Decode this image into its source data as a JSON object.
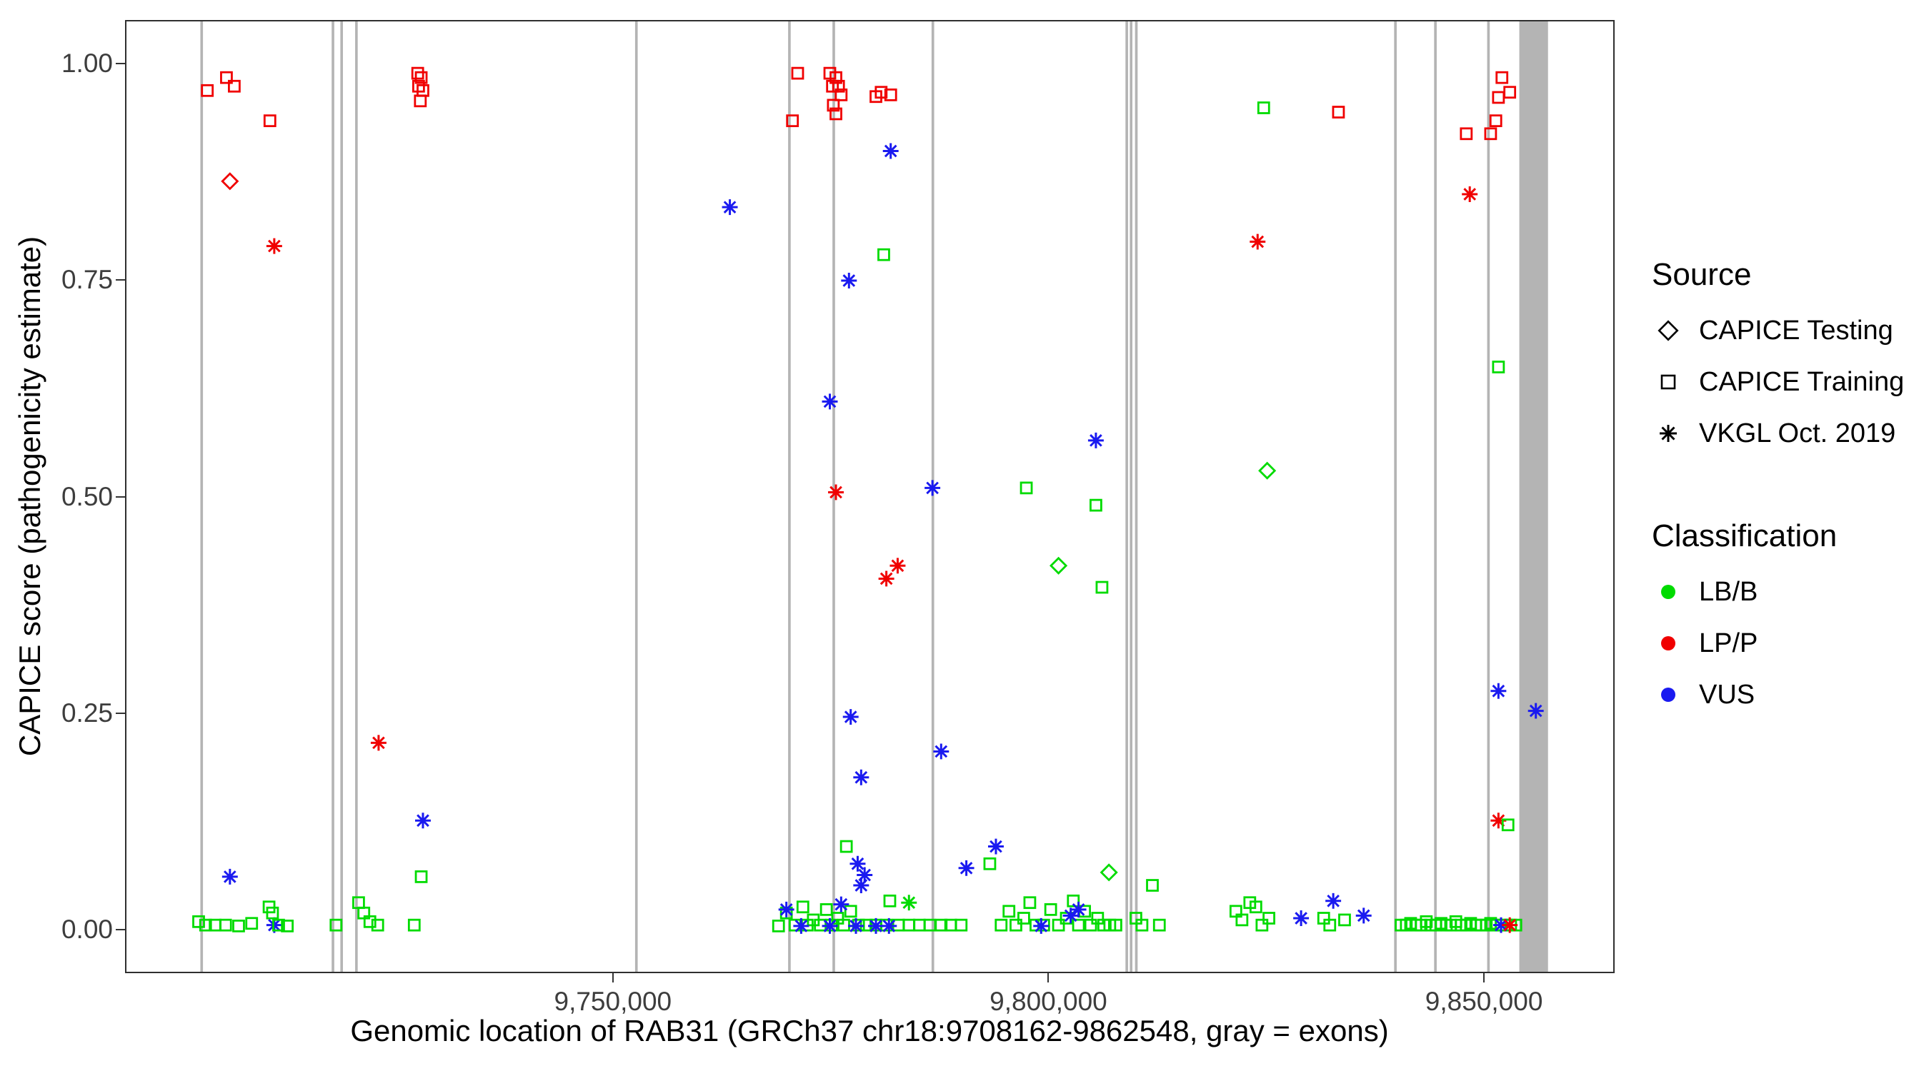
{
  "figure": {
    "y_axis_title": "CAPICE score (pathogenicity estimate)",
    "x_axis_title": "Genomic location of RAB31 (GRCh37 chr18:9708162-9862548, gray = exons)",
    "legend": {
      "source_title": "Source",
      "source_items": [
        {
          "label": "CAPICE Testing",
          "shape": "diamond"
        },
        {
          "label": "CAPICE Training",
          "shape": "square"
        },
        {
          "label": "VKGL Oct. 2019",
          "shape": "asterisk"
        }
      ],
      "classification_title": "Classification",
      "classification_items": [
        {
          "label": "LB/B",
          "color": "#00DB00"
        },
        {
          "label": "LP/P",
          "color": "#F00000"
        },
        {
          "label": "VUS",
          "color": "#1A1AF0"
        }
      ]
    }
  },
  "chart_data": {
    "type": "scatter",
    "title": "",
    "xlabel": "Genomic location of RAB31 (GRCh37 chr18:9708162-9862548, gray = exons)",
    "ylabel": "CAPICE score (pathogenicity estimate)",
    "xlim": [
      9694000,
      9865000
    ],
    "ylim": [
      -0.05,
      1.05
    ],
    "grid": false,
    "legend_position": "right",
    "x_ticks": [
      {
        "v": 9750000,
        "label": "9,750,000"
      },
      {
        "v": 9800000,
        "label": "9,800,000"
      },
      {
        "v": 9850000,
        "label": "9,850,000"
      }
    ],
    "y_ticks": [
      {
        "v": 0.0,
        "label": "0.00"
      },
      {
        "v": 0.25,
        "label": "0.25"
      },
      {
        "v": 0.5,
        "label": "0.50"
      },
      {
        "v": 0.75,
        "label": "0.75"
      },
      {
        "v": 1.0,
        "label": "1.00"
      }
    ],
    "colors": {
      "g": "#00DB00",
      "r": "#F00000",
      "b": "#1A1AF0",
      "exon": "#B4B4B4"
    },
    "point_format": [
      "genomic_position",
      "capice_score",
      "source_shape",
      "classification"
    ],
    "shape_codes": {
      "s": "CAPICE Training (open square)",
      "d": "CAPICE Testing (open diamond)",
      "a": "VKGL Oct. 2019 (asterisk)"
    },
    "class_codes": {
      "g": "LB/B",
      "r": "LP/P",
      "b": "VUS"
    },
    "exons": [
      [
        9702500,
        9702800
      ],
      [
        9717600,
        9717900
      ],
      [
        9718600,
        9718900
      ],
      [
        9720300,
        9720600
      ],
      [
        9752500,
        9752800
      ],
      [
        9770100,
        9770400
      ],
      [
        9775200,
        9775500
      ],
      [
        9786600,
        9786900
      ],
      [
        9808900,
        9809200
      ],
      [
        9809400,
        9809700
      ],
      [
        9810000,
        9810300
      ],
      [
        9839800,
        9840100
      ],
      [
        9844400,
        9844700
      ],
      [
        9850500,
        9850800
      ],
      [
        9854200,
        9857500
      ]
    ],
    "points": [
      [
        9703300,
        0.97,
        "s",
        "r"
      ],
      [
        9705500,
        0.985,
        "s",
        "r"
      ],
      [
        9706400,
        0.975,
        "s",
        "r"
      ],
      [
        9710500,
        0.935,
        "s",
        "r"
      ],
      [
        9705900,
        0.865,
        "d",
        "r"
      ],
      [
        9711000,
        0.79,
        "a",
        "r"
      ],
      [
        9705900,
        0.06,
        "a",
        "b"
      ],
      [
        9711000,
        0.004,
        "a",
        "b"
      ],
      [
        9702300,
        0.008,
        "s",
        "g"
      ],
      [
        9703100,
        0.004,
        "s",
        "g"
      ],
      [
        9704200,
        0.004,
        "s",
        "g"
      ],
      [
        9705400,
        0.004,
        "s",
        "g"
      ],
      [
        9706900,
        0.003,
        "s",
        "g"
      ],
      [
        9708400,
        0.006,
        "s",
        "g"
      ],
      [
        9710400,
        0.025,
        "s",
        "g"
      ],
      [
        9710800,
        0.018,
        "s",
        "g"
      ],
      [
        9711500,
        0.004,
        "s",
        "g"
      ],
      [
        9712500,
        0.003,
        "s",
        "g"
      ],
      [
        9718100,
        0.004,
        "s",
        "g"
      ],
      [
        9720700,
        0.03,
        "s",
        "g"
      ],
      [
        9721300,
        0.018,
        "s",
        "g"
      ],
      [
        9722000,
        0.008,
        "s",
        "g"
      ],
      [
        9722900,
        0.004,
        "s",
        "g"
      ],
      [
        9727100,
        0.004,
        "s",
        "g"
      ],
      [
        9727900,
        0.06,
        "s",
        "g"
      ],
      [
        9723000,
        0.215,
        "a",
        "r"
      ],
      [
        9728100,
        0.125,
        "a",
        "b"
      ],
      [
        9727500,
        0.99,
        "s",
        "r"
      ],
      [
        9727900,
        0.985,
        "s",
        "r"
      ],
      [
        9727600,
        0.975,
        "s",
        "r"
      ],
      [
        9728100,
        0.97,
        "s",
        "r"
      ],
      [
        9727800,
        0.958,
        "s",
        "r"
      ],
      [
        9763400,
        0.835,
        "a",
        "b"
      ],
      [
        9770600,
        0.935,
        "s",
        "r"
      ],
      [
        9771200,
        0.99,
        "s",
        "r"
      ],
      [
        9774900,
        0.99,
        "s",
        "r"
      ],
      [
        9775600,
        0.985,
        "s",
        "r"
      ],
      [
        9775200,
        0.975,
        "s",
        "r"
      ],
      [
        9775900,
        0.975,
        "s",
        "r"
      ],
      [
        9776200,
        0.965,
        "s",
        "r"
      ],
      [
        9775300,
        0.953,
        "s",
        "r"
      ],
      [
        9775600,
        0.943,
        "s",
        "r"
      ],
      [
        9780200,
        0.963,
        "s",
        "r"
      ],
      [
        9780800,
        0.968,
        "s",
        "r"
      ],
      [
        9781900,
        0.965,
        "s",
        "r"
      ],
      [
        9781900,
        0.9,
        "a",
        "b"
      ],
      [
        9781100,
        0.78,
        "s",
        "g"
      ],
      [
        9777100,
        0.75,
        "a",
        "b"
      ],
      [
        9774900,
        0.61,
        "a",
        "b"
      ],
      [
        9775600,
        0.505,
        "a",
        "r"
      ],
      [
        9786700,
        0.51,
        "a",
        "b"
      ],
      [
        9781400,
        0.405,
        "a",
        "r"
      ],
      [
        9782700,
        0.42,
        "a",
        "r"
      ],
      [
        9777300,
        0.245,
        "a",
        "b"
      ],
      [
        9787700,
        0.205,
        "a",
        "b"
      ],
      [
        9778500,
        0.175,
        "a",
        "b"
      ],
      [
        9776800,
        0.095,
        "s",
        "g"
      ],
      [
        9778100,
        0.075,
        "a",
        "b"
      ],
      [
        9778900,
        0.062,
        "a",
        "b"
      ],
      [
        9778500,
        0.05,
        "a",
        "b"
      ],
      [
        9781800,
        0.032,
        "s",
        "g"
      ],
      [
        9769000,
        0.003,
        "s",
        "g"
      ],
      [
        9769900,
        0.018,
        "s",
        "g"
      ],
      [
        9770900,
        0.004,
        "s",
        "g"
      ],
      [
        9771800,
        0.025,
        "s",
        "g"
      ],
      [
        9772300,
        0.004,
        "s",
        "g"
      ],
      [
        9773000,
        0.01,
        "s",
        "g"
      ],
      [
        9773800,
        0.004,
        "s",
        "g"
      ],
      [
        9774500,
        0.022,
        "s",
        "g"
      ],
      [
        9775100,
        0.004,
        "s",
        "g"
      ],
      [
        9775800,
        0.012,
        "s",
        "g"
      ],
      [
        9776500,
        0.004,
        "s",
        "g"
      ],
      [
        9777300,
        0.02,
        "s",
        "g"
      ],
      [
        9778200,
        0.004,
        "s",
        "g"
      ],
      [
        9779100,
        0.004,
        "s",
        "g"
      ],
      [
        9780200,
        0.004,
        "s",
        "g"
      ],
      [
        9781400,
        0.004,
        "s",
        "g"
      ],
      [
        9782800,
        0.004,
        "s",
        "g"
      ],
      [
        9784000,
        0.004,
        "s",
        "g"
      ],
      [
        9785200,
        0.004,
        "s",
        "g"
      ],
      [
        9786400,
        0.004,
        "s",
        "g"
      ],
      [
        9787700,
        0.004,
        "s",
        "g"
      ],
      [
        9788800,
        0.004,
        "s",
        "g"
      ],
      [
        9790000,
        0.004,
        "s",
        "g"
      ],
      [
        9769900,
        0.022,
        "a",
        "b"
      ],
      [
        9771600,
        0.003,
        "a",
        "b"
      ],
      [
        9774900,
        0.003,
        "a",
        "b"
      ],
      [
        9776200,
        0.028,
        "a",
        "b"
      ],
      [
        9777900,
        0.003,
        "a",
        "b"
      ],
      [
        9780200,
        0.003,
        "a",
        "b"
      ],
      [
        9781700,
        0.003,
        "a",
        "b"
      ],
      [
        9784000,
        0.03,
        "a",
        "g"
      ],
      [
        9790600,
        0.07,
        "a",
        "b"
      ],
      [
        9793300,
        0.075,
        "s",
        "g"
      ],
      [
        9794000,
        0.095,
        "a",
        "b"
      ],
      [
        9797500,
        0.51,
        "s",
        "g"
      ],
      [
        9805500,
        0.565,
        "a",
        "b"
      ],
      [
        9805500,
        0.49,
        "s",
        "g"
      ],
      [
        9801200,
        0.42,
        "d",
        "g"
      ],
      [
        9806200,
        0.395,
        "s",
        "g"
      ],
      [
        9807000,
        0.065,
        "d",
        "g"
      ],
      [
        9794600,
        0.004,
        "s",
        "g"
      ],
      [
        9795500,
        0.02,
        "s",
        "g"
      ],
      [
        9796300,
        0.004,
        "s",
        "g"
      ],
      [
        9797200,
        0.012,
        "s",
        "g"
      ],
      [
        9797900,
        0.03,
        "s",
        "g"
      ],
      [
        9798600,
        0.004,
        "s",
        "g"
      ],
      [
        9799500,
        0.004,
        "s",
        "g"
      ],
      [
        9800300,
        0.022,
        "s",
        "g"
      ],
      [
        9801200,
        0.004,
        "s",
        "g"
      ],
      [
        9802100,
        0.012,
        "s",
        "g"
      ],
      [
        9802900,
        0.032,
        "s",
        "g"
      ],
      [
        9803500,
        0.004,
        "s",
        "g"
      ],
      [
        9804200,
        0.02,
        "s",
        "g"
      ],
      [
        9804900,
        0.004,
        "s",
        "g"
      ],
      [
        9805700,
        0.012,
        "s",
        "g"
      ],
      [
        9806400,
        0.004,
        "s",
        "g"
      ],
      [
        9807100,
        0.004,
        "s",
        "g"
      ],
      [
        9807800,
        0.004,
        "s",
        "g"
      ],
      [
        9799200,
        0.003,
        "a",
        "b"
      ],
      [
        9802600,
        0.015,
        "a",
        "b"
      ],
      [
        9803500,
        0.022,
        "a",
        "b"
      ],
      [
        9810100,
        0.012,
        "s",
        "g"
      ],
      [
        9810800,
        0.004,
        "s",
        "g"
      ],
      [
        9812000,
        0.05,
        "s",
        "g"
      ],
      [
        9812800,
        0.004,
        "s",
        "g"
      ],
      [
        9824800,
        0.95,
        "s",
        "g"
      ],
      [
        9833400,
        0.945,
        "s",
        "r"
      ],
      [
        9824100,
        0.795,
        "a",
        "r"
      ],
      [
        9825200,
        0.53,
        "d",
        "g"
      ],
      [
        9821600,
        0.02,
        "s",
        "g"
      ],
      [
        9822300,
        0.01,
        "s",
        "g"
      ],
      [
        9823200,
        0.03,
        "s",
        "g"
      ],
      [
        9823900,
        0.025,
        "s",
        "g"
      ],
      [
        9824600,
        0.004,
        "s",
        "g"
      ],
      [
        9825400,
        0.012,
        "s",
        "g"
      ],
      [
        9831700,
        0.012,
        "s",
        "g"
      ],
      [
        9832400,
        0.004,
        "s",
        "g"
      ],
      [
        9834100,
        0.01,
        "s",
        "g"
      ],
      [
        9829100,
        0.012,
        "a",
        "b"
      ],
      [
        9832800,
        0.032,
        "a",
        "b"
      ],
      [
        9836300,
        0.015,
        "a",
        "b"
      ],
      [
        9848100,
        0.92,
        "s",
        "r"
      ],
      [
        9850900,
        0.92,
        "s",
        "r"
      ],
      [
        9851500,
        0.935,
        "s",
        "r"
      ],
      [
        9851800,
        0.962,
        "s",
        "r"
      ],
      [
        9852200,
        0.985,
        "s",
        "r"
      ],
      [
        9853100,
        0.968,
        "s",
        "r"
      ],
      [
        9848500,
        0.85,
        "a",
        "r"
      ],
      [
        9851800,
        0.65,
        "s",
        "g"
      ],
      [
        9851800,
        0.275,
        "a",
        "b"
      ],
      [
        9856100,
        0.252,
        "a",
        "b"
      ],
      [
        9851800,
        0.125,
        "a",
        "r"
      ],
      [
        9852900,
        0.12,
        "s",
        "g"
      ],
      [
        9840600,
        0.004,
        "s",
        "g"
      ],
      [
        9841200,
        0.004,
        "s",
        "g"
      ],
      [
        9841700,
        0.006,
        "s",
        "g"
      ],
      [
        9842300,
        0.004,
        "s",
        "g"
      ],
      [
        9842900,
        0.004,
        "s",
        "g"
      ],
      [
        9843500,
        0.008,
        "s",
        "g"
      ],
      [
        9844000,
        0.004,
        "s",
        "g"
      ],
      [
        9844600,
        0.004,
        "s",
        "g"
      ],
      [
        9845200,
        0.006,
        "s",
        "g"
      ],
      [
        9845800,
        0.004,
        "s",
        "g"
      ],
      [
        9846300,
        0.004,
        "s",
        "g"
      ],
      [
        9846900,
        0.008,
        "s",
        "g"
      ],
      [
        9847500,
        0.004,
        "s",
        "g"
      ],
      [
        9848100,
        0.004,
        "s",
        "g"
      ],
      [
        9848600,
        0.006,
        "s",
        "g"
      ],
      [
        9849200,
        0.004,
        "s",
        "g"
      ],
      [
        9849800,
        0.004,
        "s",
        "g"
      ],
      [
        9850400,
        0.004,
        "s",
        "g"
      ],
      [
        9850900,
        0.006,
        "s",
        "g"
      ],
      [
        9851500,
        0.004,
        "s",
        "g"
      ],
      [
        9852100,
        0.004,
        "s",
        "g"
      ],
      [
        9852700,
        0.004,
        "s",
        "g"
      ],
      [
        9853200,
        0.004,
        "s",
        "g"
      ],
      [
        9853800,
        0.004,
        "s",
        "g"
      ],
      [
        9852100,
        0.004,
        "a",
        "b"
      ],
      [
        9853100,
        0.004,
        "a",
        "r"
      ]
    ]
  }
}
